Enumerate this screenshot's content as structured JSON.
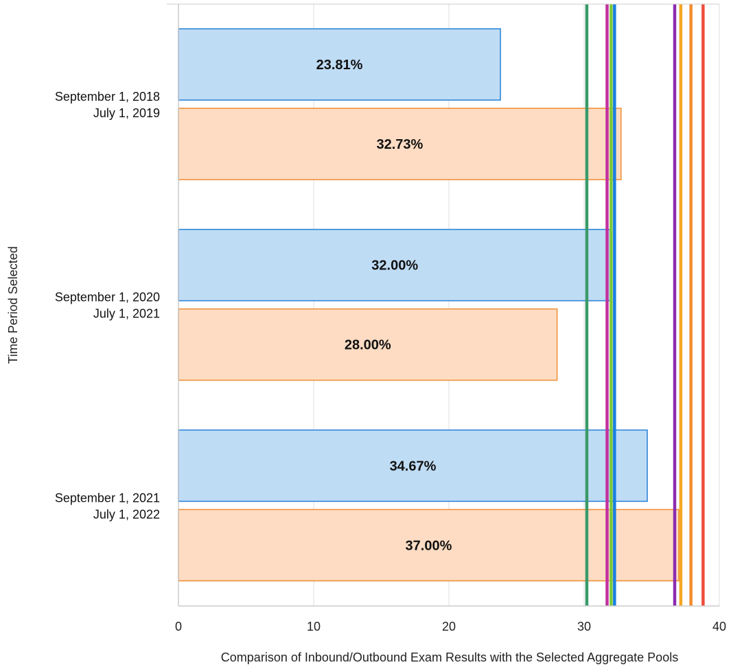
{
  "chart_data": {
    "type": "bar",
    "orientation": "horizontal",
    "categories": [
      [
        "September 1, 2018",
        "July 1, 2019"
      ],
      [
        "September 1, 2020",
        "July 1, 2021"
      ],
      [
        "September 1, 2021",
        "July 1, 2022"
      ]
    ],
    "series": [
      {
        "values": [
          23.81,
          32.0,
          34.67
        ],
        "labels": [
          "23.81%",
          "32.00%",
          "34.67%"
        ],
        "fill": "#bfdcf5",
        "stroke": "#2f86d8"
      },
      {
        "values": [
          32.73,
          28.0,
          37.0
        ],
        "labels": [
          "32.73%",
          "28.00%",
          "37.00%"
        ],
        "fill": "#fddcc3",
        "stroke": "#f0913a"
      }
    ],
    "reference_lines": [
      {
        "value": 30.2,
        "color": "#3a9a6a"
      },
      {
        "value": 31.7,
        "color": "#c2329e"
      },
      {
        "value": 32.0,
        "color": "#7cc83a"
      },
      {
        "value": 32.25,
        "color": "#1a7fe0"
      },
      {
        "value": 36.7,
        "color": "#8a2cb0"
      },
      {
        "value": 37.15,
        "color": "#f5a623"
      },
      {
        "value": 37.9,
        "color": "#f08c2c"
      },
      {
        "value": 38.8,
        "color": "#ef4e3a"
      }
    ],
    "xlabel": "Comparison of Inbound/Outbound Exam Results with the Selected Aggregate Pools",
    "ylabel": "Time Period Selected",
    "xlim": [
      0,
      40
    ],
    "xticks": [
      0,
      10,
      20,
      30,
      40
    ],
    "grid": true,
    "legend": "none"
  }
}
